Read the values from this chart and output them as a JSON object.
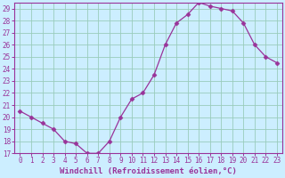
{
  "x": [
    0,
    1,
    2,
    3,
    4,
    5,
    6,
    7,
    8,
    9,
    10,
    11,
    12,
    13,
    14,
    15,
    16,
    17,
    18,
    19,
    20,
    21,
    22,
    23
  ],
  "y": [
    20.5,
    20.0,
    19.5,
    19.0,
    18.0,
    17.8,
    17.0,
    17.0,
    18.0,
    20.0,
    21.5,
    22.0,
    23.5,
    26.0,
    27.8,
    28.5,
    29.5,
    29.2,
    29.0,
    28.8,
    27.8,
    26.0,
    25.0,
    24.5
  ],
  "line_color": "#993399",
  "marker": "D",
  "marker_size": 2.5,
  "bg_color": "#cceeff",
  "grid_color": "#99ccbb",
  "axis_color": "#993399",
  "tick_color": "#993399",
  "xlabel": "Windchill (Refroidissement éolien,°C)",
  "ylim": [
    17,
    29.5
  ],
  "xlim": [
    -0.5,
    23.5
  ],
  "yticks": [
    17,
    18,
    19,
    20,
    21,
    22,
    23,
    24,
    25,
    26,
    27,
    28,
    29
  ],
  "xticks": [
    0,
    1,
    2,
    3,
    4,
    5,
    6,
    7,
    8,
    9,
    10,
    11,
    12,
    13,
    14,
    15,
    16,
    17,
    18,
    19,
    20,
    21,
    22,
    23
  ],
  "font_size": 5.5,
  "xlabel_fontsize": 6.5
}
